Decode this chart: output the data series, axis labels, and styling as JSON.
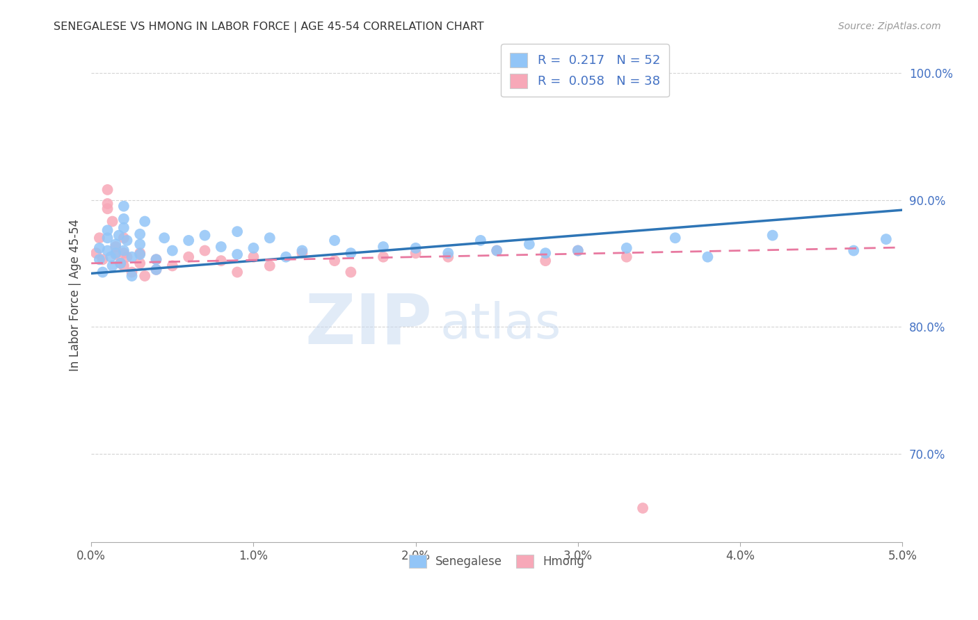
{
  "title": "SENEGALESE VS HMONG IN LABOR FORCE | AGE 45-54 CORRELATION CHART",
  "source": "Source: ZipAtlas.com",
  "ylabel": "In Labor Force | Age 45-54",
  "xlim": [
    0.0,
    0.05
  ],
  "ylim": [
    0.63,
    1.02
  ],
  "xtick_labels": [
    "0.0%",
    "1.0%",
    "2.0%",
    "3.0%",
    "4.0%",
    "5.0%"
  ],
  "xtick_vals": [
    0.0,
    0.01,
    0.02,
    0.03,
    0.04,
    0.05
  ],
  "ytick_labels": [
    "70.0%",
    "80.0%",
    "90.0%",
    "100.0%"
  ],
  "ytick_vals": [
    0.7,
    0.8,
    0.9,
    1.0
  ],
  "legend_R": [
    "0.217",
    "0.058"
  ],
  "legend_N": [
    "52",
    "38"
  ],
  "senegalese_color": "#92c5f7",
  "hmong_color": "#f7a8b8",
  "senegalese_line_color": "#2e75b6",
  "hmong_line_color": "#e879a0",
  "background_color": "#ffffff",
  "watermark_zip": "ZIP",
  "watermark_atlas": "atlas",
  "senegalese_x": [
    0.0005,
    0.0005,
    0.0007,
    0.001,
    0.001,
    0.001,
    0.0012,
    0.0013,
    0.0015,
    0.0015,
    0.0017,
    0.0018,
    0.002,
    0.002,
    0.002,
    0.002,
    0.0022,
    0.0025,
    0.0025,
    0.003,
    0.003,
    0.003,
    0.0033,
    0.004,
    0.004,
    0.0045,
    0.005,
    0.006,
    0.007,
    0.008,
    0.009,
    0.009,
    0.01,
    0.011,
    0.012,
    0.013,
    0.015,
    0.016,
    0.018,
    0.02,
    0.022,
    0.024,
    0.025,
    0.027,
    0.028,
    0.03,
    0.033,
    0.036,
    0.038,
    0.042,
    0.047,
    0.049
  ],
  "senegalese_y": [
    0.853,
    0.862,
    0.843,
    0.87,
    0.876,
    0.86,
    0.855,
    0.848,
    0.865,
    0.858,
    0.872,
    0.85,
    0.885,
    0.895,
    0.878,
    0.86,
    0.868,
    0.855,
    0.84,
    0.873,
    0.865,
    0.857,
    0.883,
    0.853,
    0.845,
    0.87,
    0.86,
    0.868,
    0.872,
    0.863,
    0.875,
    0.857,
    0.862,
    0.87,
    0.855,
    0.86,
    0.868,
    0.858,
    0.863,
    0.862,
    0.858,
    0.868,
    0.86,
    0.865,
    0.858,
    0.86,
    0.862,
    0.87,
    0.855,
    0.872,
    0.86,
    0.869
  ],
  "hmong_x": [
    0.0003,
    0.0005,
    0.0007,
    0.001,
    0.001,
    0.001,
    0.0013,
    0.0015,
    0.0015,
    0.0018,
    0.002,
    0.002,
    0.002,
    0.0022,
    0.0025,
    0.003,
    0.003,
    0.0033,
    0.004,
    0.004,
    0.005,
    0.006,
    0.007,
    0.008,
    0.009,
    0.01,
    0.011,
    0.013,
    0.015,
    0.016,
    0.018,
    0.02,
    0.022,
    0.025,
    0.028,
    0.03,
    0.033,
    0.034
  ],
  "hmong_y": [
    0.858,
    0.87,
    0.853,
    0.897,
    0.908,
    0.893,
    0.883,
    0.863,
    0.857,
    0.85,
    0.87,
    0.858,
    0.848,
    0.855,
    0.843,
    0.858,
    0.85,
    0.84,
    0.853,
    0.845,
    0.848,
    0.855,
    0.86,
    0.852,
    0.843,
    0.855,
    0.848,
    0.858,
    0.852,
    0.843,
    0.855,
    0.858,
    0.855,
    0.86,
    0.852,
    0.86,
    0.855,
    0.657
  ]
}
